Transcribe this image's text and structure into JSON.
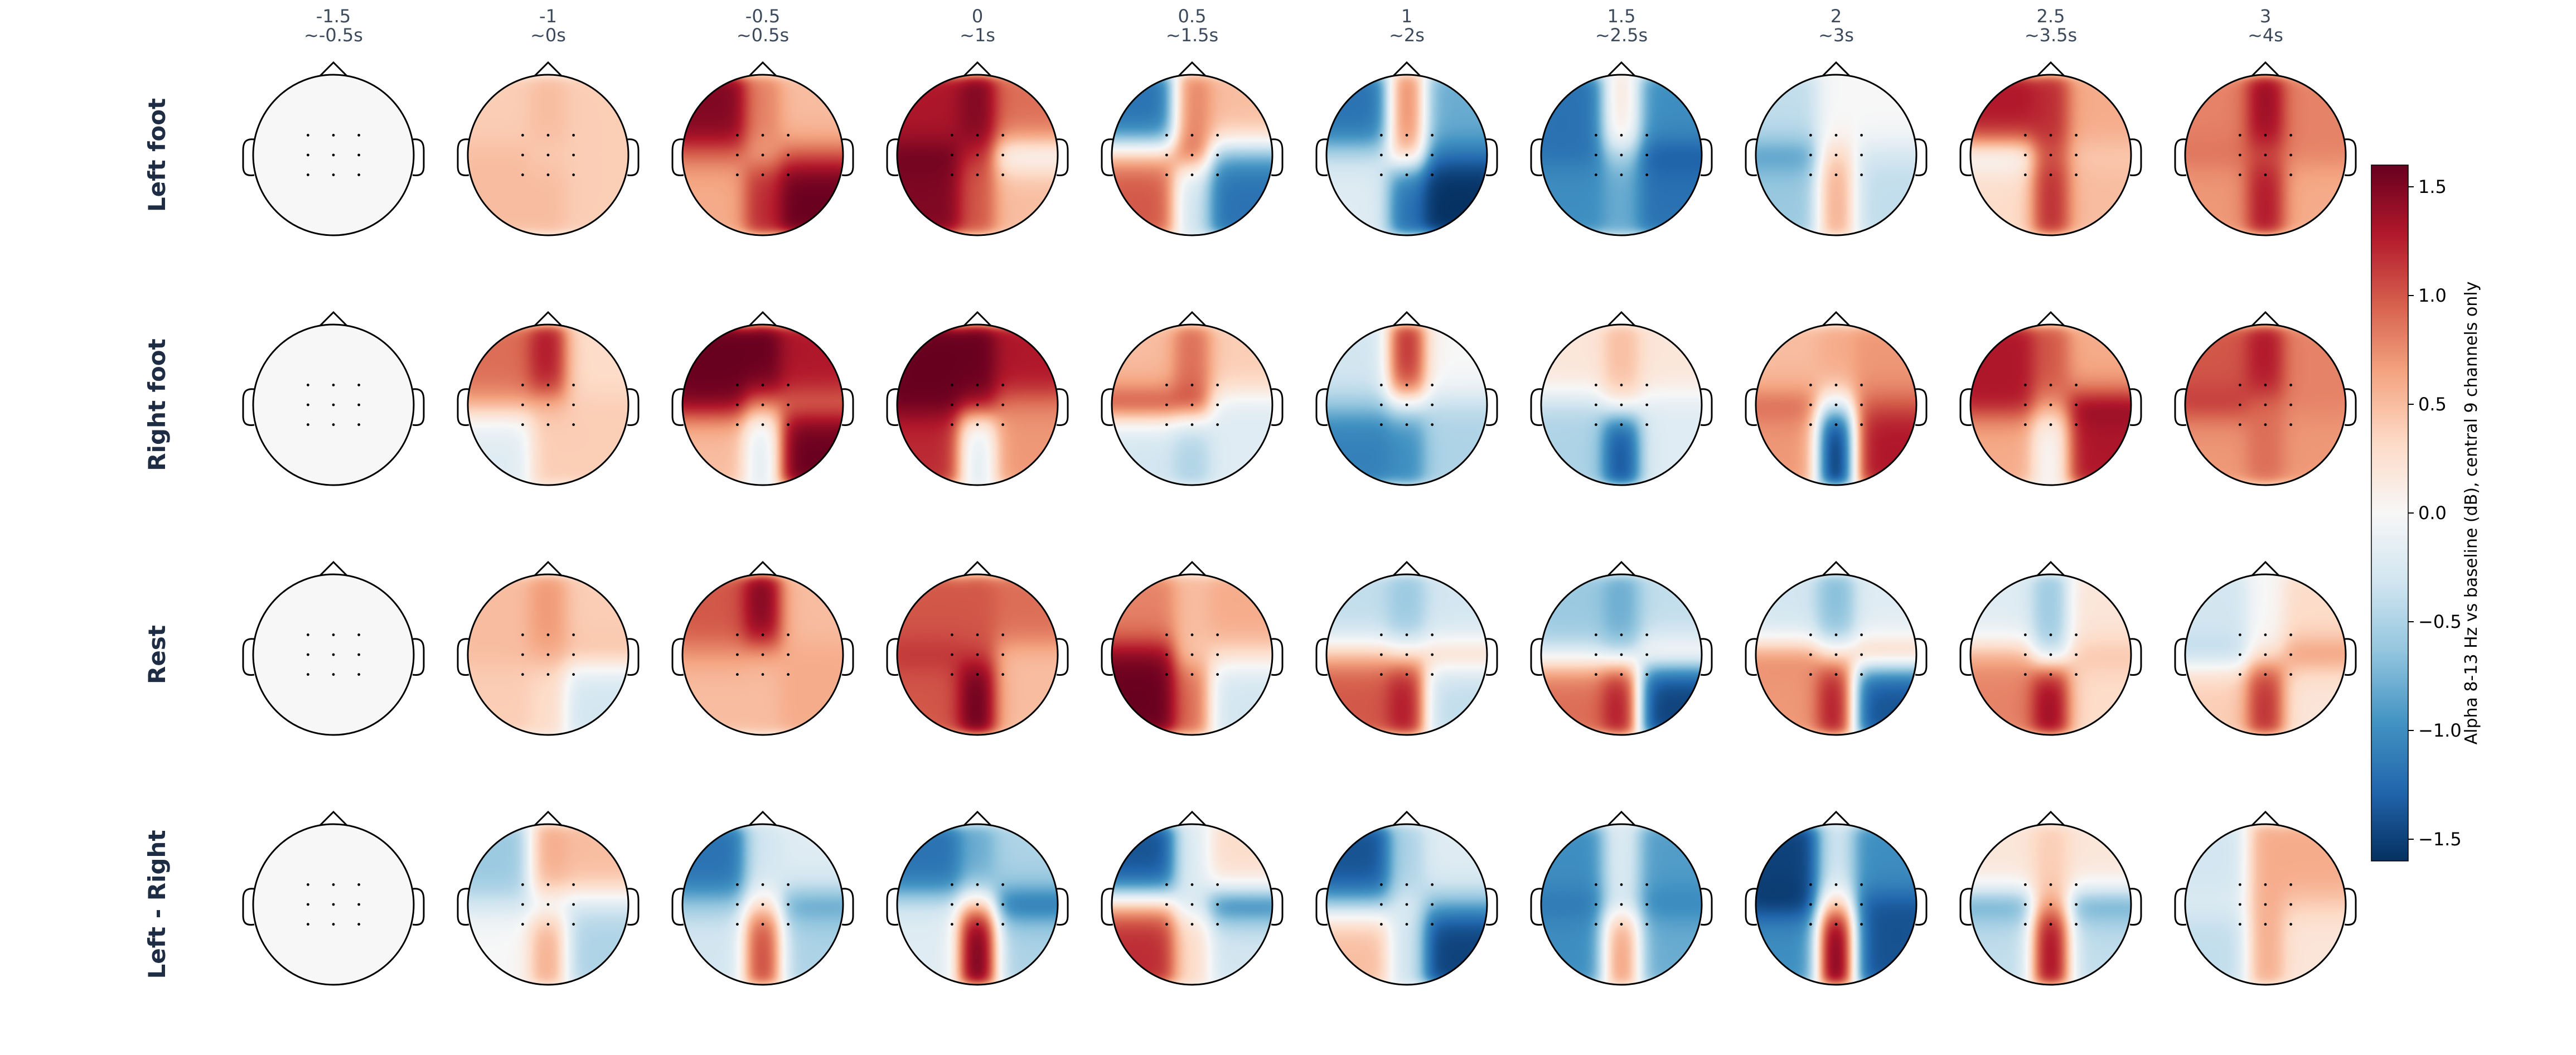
{
  "chart_data": {
    "type": "heatmap",
    "subtype": "eeg-topomap-grid",
    "rows": [
      "Left foot",
      "Right foot",
      "Rest",
      "Left - Right"
    ],
    "columns": [
      {
        "value": "-1.5",
        "time": "~-0.5s"
      },
      {
        "value": "-1",
        "time": "~0s"
      },
      {
        "value": "-0.5",
        "time": "~0.5s"
      },
      {
        "value": "0",
        "time": "~1s"
      },
      {
        "value": "0.5",
        "time": "~1.5s"
      },
      {
        "value": "1",
        "time": "~2s"
      },
      {
        "value": "1.5",
        "time": "~2.5s"
      },
      {
        "value": "2",
        "time": "~3s"
      },
      {
        "value": "2.5",
        "time": "~3.5s"
      },
      {
        "value": "3",
        "time": "~4s"
      }
    ],
    "colorbar": {
      "label": "Alpha 8-13 Hz vs baseline (dB), central 9 channels only",
      "range": [
        -1.6,
        1.6
      ],
      "ticks": [
        -1.5,
        -1.0,
        -0.5,
        0.0,
        0.5,
        1.0,
        1.5
      ],
      "tick_labels": [
        "−1.5",
        "−1.0",
        "−0.5",
        "0.0",
        "0.5",
        "1.0",
        "1.5"
      ],
      "colormap": "RdBu_r"
    },
    "sensor_grid": "3x3 central channels",
    "maps": [
      [
        [
          [
            0,
            0,
            0
          ],
          [
            0,
            0,
            0
          ],
          [
            0,
            0,
            0
          ]
        ],
        [
          [
            0.4,
            0.5,
            0.4
          ],
          [
            0.5,
            0.4,
            0.4
          ],
          [
            0.5,
            0.5,
            0.4
          ]
        ],
        [
          [
            1.5,
            0.8,
            0.5
          ],
          [
            0.9,
            0.6,
            1.0
          ],
          [
            0.6,
            1.2,
            1.6
          ]
        ],
        [
          [
            1.3,
            1.5,
            0.9
          ],
          [
            1.6,
            1.2,
            -0.2
          ],
          [
            1.5,
            1.0,
            0.5
          ]
        ],
        [
          [
            -1.2,
            0.8,
            0.5
          ],
          [
            0.5,
            1.0,
            -0.8
          ],
          [
            1.0,
            -0.3,
            -1.2
          ]
        ],
        [
          [
            -1.2,
            0.8,
            -0.8
          ],
          [
            -0.4,
            0.5,
            -1.2
          ],
          [
            -0.2,
            -1.2,
            -1.6
          ]
        ],
        [
          [
            -1.2,
            0.2,
            -1.0
          ],
          [
            -1.2,
            -0.5,
            -1.4
          ],
          [
            -1.0,
            -0.8,
            -1.2
          ]
        ],
        [
          [
            -0.4,
            0.0,
            0.0
          ],
          [
            -1.0,
            0.4,
            -0.3
          ],
          [
            -0.6,
            0.6,
            -0.4
          ]
        ],
        [
          [
            1.3,
            1.2,
            0.6
          ],
          [
            -0.2,
            1.0,
            0.4
          ],
          [
            0.3,
            1.2,
            0.5
          ]
        ],
        [
          [
            0.8,
            1.4,
            0.8
          ],
          [
            0.9,
            1.0,
            0.8
          ],
          [
            0.7,
            1.3,
            0.6
          ]
        ]
      ],
      [
        [
          [
            0,
            0,
            0
          ],
          [
            0,
            0,
            0
          ],
          [
            0,
            0,
            0
          ]
        ],
        [
          [
            0.9,
            1.3,
            0.3
          ],
          [
            0.6,
            0.5,
            0.4
          ],
          [
            -0.2,
            0.4,
            0.4
          ]
        ],
        [
          [
            1.6,
            1.6,
            1.3
          ],
          [
            1.5,
            0.8,
            0.8
          ],
          [
            0.5,
            -0.2,
            1.6
          ]
        ],
        [
          [
            1.6,
            1.6,
            1.3
          ],
          [
            1.6,
            1.4,
            0.8
          ],
          [
            1.2,
            -0.2,
            0.7
          ]
        ],
        [
          [
            0.5,
            0.9,
            0.4
          ],
          [
            1.3,
            1.2,
            -0.2
          ],
          [
            -0.3,
            -0.5,
            -0.2
          ]
        ],
        [
          [
            -0.3,
            1.2,
            0.0
          ],
          [
            -0.6,
            -0.2,
            -0.4
          ],
          [
            -1.1,
            -1.0,
            -0.5
          ]
        ],
        [
          [
            0.2,
            0.5,
            0.2
          ],
          [
            -0.4,
            0.1,
            -0.2
          ],
          [
            -0.5,
            -1.4,
            -0.2
          ]
        ],
        [
          [
            0.5,
            0.6,
            0.7
          ],
          [
            1.0,
            -0.3,
            1.0
          ],
          [
            0.7,
            -1.6,
            1.3
          ]
        ],
        [
          [
            1.3,
            1.0,
            0.6
          ],
          [
            1.3,
            0.7,
            1.5
          ],
          [
            0.6,
            0.0,
            1.3
          ]
        ],
        [
          [
            1.0,
            1.3,
            0.8
          ],
          [
            1.2,
            0.9,
            0.8
          ],
          [
            0.7,
            0.9,
            0.7
          ]
        ]
      ],
      [
        [
          [
            0,
            0,
            0
          ],
          [
            0,
            0,
            0
          ],
          [
            0,
            0,
            0
          ]
        ],
        [
          [
            0.5,
            0.7,
            0.4
          ],
          [
            0.5,
            0.6,
            0.5
          ],
          [
            0.4,
            0.3,
            -0.3
          ]
        ],
        [
          [
            1.0,
            1.5,
            0.5
          ],
          [
            0.7,
            0.6,
            0.6
          ],
          [
            0.5,
            0.5,
            0.6
          ]
        ],
        [
          [
            1.0,
            1.0,
            0.9
          ],
          [
            1.2,
            1.1,
            0.5
          ],
          [
            1.0,
            1.6,
            0.5
          ]
        ],
        [
          [
            0.8,
            0.5,
            0.6
          ],
          [
            1.5,
            0.4,
            0.3
          ],
          [
            1.6,
            0.9,
            -0.3
          ]
        ],
        [
          [
            -0.4,
            -0.6,
            -0.3
          ],
          [
            0.5,
            0.3,
            0.5
          ],
          [
            1.0,
            1.3,
            -0.4
          ]
        ],
        [
          [
            -0.6,
            -0.8,
            -0.4
          ],
          [
            -0.2,
            -0.4,
            0.3
          ],
          [
            0.9,
            1.3,
            -1.5
          ]
        ],
        [
          [
            -0.3,
            -0.7,
            -0.2
          ],
          [
            0.8,
            0.3,
            0.7
          ],
          [
            0.7,
            1.3,
            -1.4
          ]
        ],
        [
          [
            -0.2,
            -0.6,
            0.2
          ],
          [
            0.6,
            -0.4,
            0.5
          ],
          [
            0.8,
            1.4,
            0.3
          ]
        ],
        [
          [
            -0.3,
            0.0,
            0.3
          ],
          [
            -0.5,
            0.2,
            0.8
          ],
          [
            0.4,
            1.2,
            0.2
          ]
        ]
      ],
      [
        [
          [
            0,
            0,
            0
          ],
          [
            0,
            0,
            0
          ],
          [
            0,
            0,
            0
          ]
        ],
        [
          [
            -0.6,
            0.6,
            0.5
          ],
          [
            -0.3,
            -0.2,
            -0.3
          ],
          [
            0.0,
            0.6,
            -0.5
          ]
        ],
        [
          [
            -1.2,
            -0.3,
            -0.2
          ],
          [
            -0.6,
            0.3,
            -1.0
          ],
          [
            -0.3,
            1.1,
            -0.5
          ]
        ],
        [
          [
            -1.2,
            -0.8,
            -0.5
          ],
          [
            -0.3,
            0.5,
            -1.4
          ],
          [
            -0.2,
            1.6,
            -0.5
          ]
        ],
        [
          [
            -1.4,
            -0.2,
            0.3
          ],
          [
            0.5,
            -0.3,
            -1.4
          ],
          [
            1.2,
            0.3,
            -0.3
          ]
        ],
        [
          [
            -1.4,
            -0.5,
            -0.2
          ],
          [
            -0.6,
            -0.2,
            -0.8
          ],
          [
            0.5,
            -0.3,
            -1.5
          ]
        ],
        [
          [
            -1.0,
            -0.2,
            -0.9
          ],
          [
            -1.2,
            -0.3,
            -1.1
          ],
          [
            -1.0,
            0.7,
            -0.8
          ]
        ],
        [
          [
            -1.5,
            -0.3,
            -1.0
          ],
          [
            -1.6,
            0.5,
            -1.4
          ],
          [
            -1.0,
            1.6,
            -1.4
          ]
        ],
        [
          [
            0.2,
            0.4,
            0.2
          ],
          [
            -1.0,
            0.7,
            -1.0
          ],
          [
            -0.4,
            1.4,
            -0.4
          ]
        ],
        [
          [
            -0.3,
            0.6,
            0.6
          ],
          [
            -0.2,
            0.6,
            0.4
          ],
          [
            -0.4,
            0.6,
            0.2
          ]
        ]
      ]
    ]
  },
  "colors": {
    "cmap_stops": [
      "#053061",
      "#2166ac",
      "#4393c3",
      "#92c5de",
      "#d1e5f0",
      "#f7f7f7",
      "#fddbc7",
      "#f4a582",
      "#d6604d",
      "#b2182b",
      "#67001f"
    ],
    "neutral": "#f7f7f7"
  }
}
